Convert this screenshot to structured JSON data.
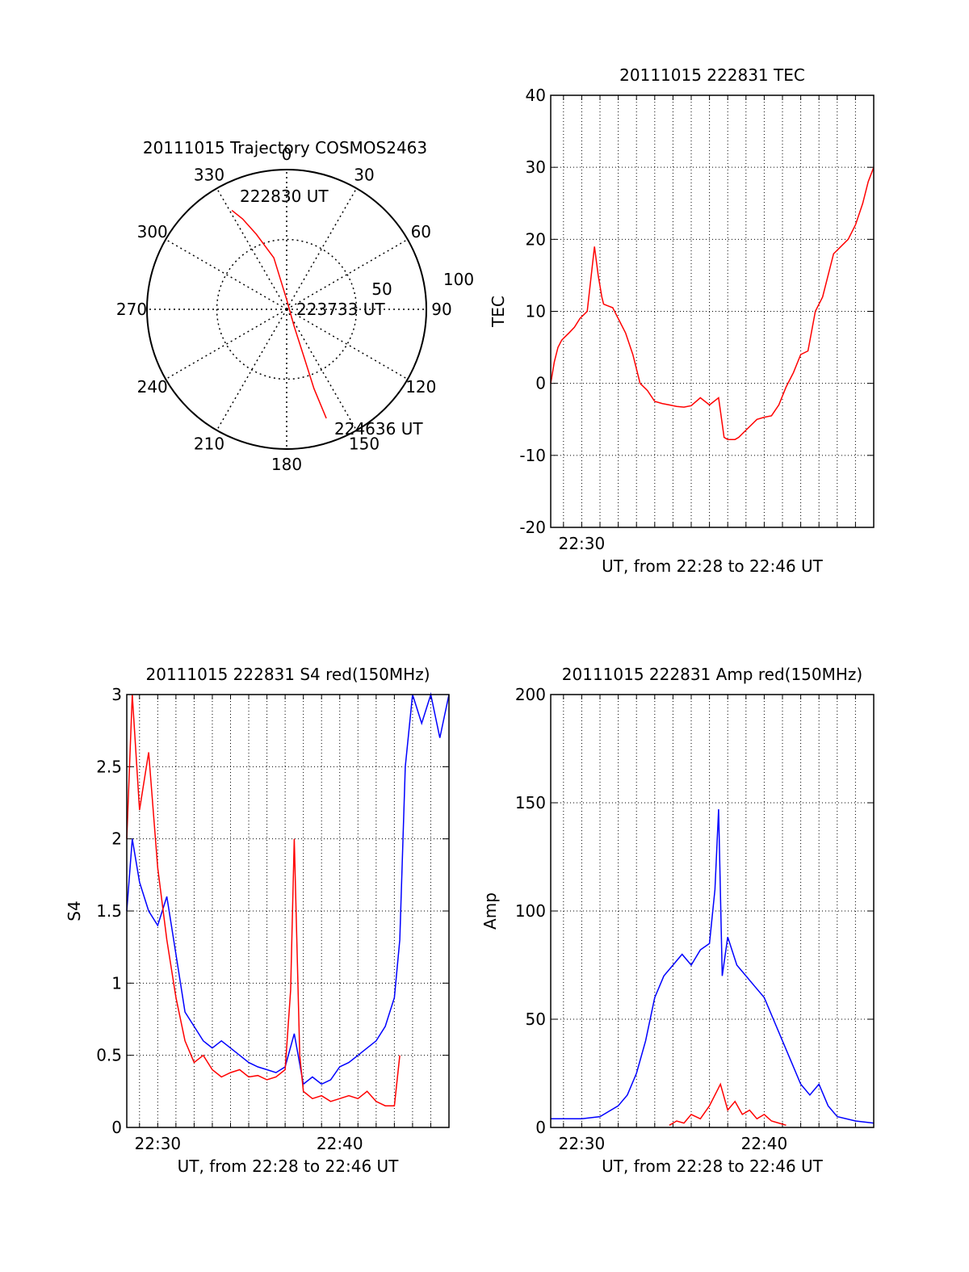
{
  "chart_data": [
    {
      "type": "polar",
      "title": "20111015 Trajectory COSMOS2463",
      "angle_labels": [
        "0",
        "30",
        "60",
        "90",
        "120",
        "150",
        "180",
        "210",
        "240",
        "270",
        "300",
        "330"
      ],
      "radial_labels": [
        "50",
        "100"
      ],
      "start_label": "222830 UT",
      "mid_label": "223733 UT",
      "end_label": "224636 UT",
      "trajectory": [
        [
          -29,
          81
        ],
        [
          -26,
          72
        ],
        [
          -22,
          58
        ],
        [
          -14,
          38
        ],
        [
          0,
          7
        ],
        [
          156,
          13
        ],
        [
          160,
          36
        ],
        [
          161,
          60
        ],
        [
          160,
          83
        ]
      ],
      "colors": {
        "trajectory": "#ff0000"
      }
    },
    {
      "type": "line",
      "title": "20111015 222831 TEC",
      "ylabel": "TEC",
      "xlabel": "UT, from 22:28 to 22:46 UT",
      "xlim": [
        28.3,
        46
      ],
      "ylim": [
        -20,
        40
      ],
      "yticks": [
        "-20",
        "-10",
        "0",
        "10",
        "20",
        "30",
        "40"
      ],
      "xticks": [
        {
          "x": 30,
          "label": "22:30"
        }
      ],
      "series": [
        {
          "color": "#ff0000",
          "x": [
            28.3,
            28.5,
            28.7,
            28.9,
            29.1,
            29.3,
            29.6,
            29.9,
            30.3,
            30.7,
            30.9,
            31.1,
            31.2,
            31.4,
            31.7,
            32.0,
            32.4,
            32.8,
            33.2,
            33.6,
            34.0,
            34.4,
            34.8,
            35.2,
            35.6,
            36.0,
            36.5,
            37.0,
            37.5,
            37.8,
            38.0,
            38.2,
            38.4,
            38.6,
            39.0,
            39.6,
            40.0,
            40.4,
            40.8,
            41.2,
            41.6,
            42.0,
            42.4,
            42.8,
            43.2,
            43.5,
            43.8,
            44.2,
            44.6,
            45.0,
            45.4,
            45.7,
            46.0
          ],
          "y": [
            0,
            3,
            5,
            6,
            6.5,
            7,
            7.8,
            9,
            10,
            19,
            15,
            12,
            11,
            10.8,
            10.5,
            9,
            7,
            4,
            0,
            -1,
            -2.5,
            -2.8,
            -3,
            -3.2,
            -3.3,
            -3.1,
            -2,
            -3,
            -2,
            -7.5,
            -7.8,
            -7.8,
            -7.8,
            -7.5,
            -6.5,
            -5,
            -4.7,
            -4.5,
            -3,
            -0.5,
            1.5,
            4,
            4.5,
            10,
            12,
            15,
            18,
            19,
            20,
            22,
            25,
            28,
            30
          ]
        }
      ]
    },
    {
      "type": "line",
      "title": "20111015 222831 S4 red(150MHz)",
      "ylabel": "S4",
      "xlabel": "UT, from 22:28 to 22:46 UT",
      "xlim": [
        28.3,
        46
      ],
      "ylim": [
        0,
        3
      ],
      "yticks": [
        "0",
        "0.5",
        "1",
        "1.5",
        "2",
        "2.5",
        "3"
      ],
      "xticks": [
        {
          "x": 30,
          "label": "22:30"
        },
        {
          "x": 40,
          "label": "22:40"
        }
      ],
      "series": [
        {
          "color": "#0000ff",
          "x": [
            28.3,
            28.6,
            29.0,
            29.5,
            30.0,
            30.5,
            31.0,
            31.5,
            32.0,
            32.5,
            33.0,
            33.5,
            34.0,
            34.5,
            35.0,
            35.5,
            36.0,
            36.5,
            37.0,
            37.5,
            38.0,
            38.5,
            39.0,
            39.5,
            40.0,
            40.5,
            41.0,
            41.5,
            42.0,
            42.5,
            43.0,
            43.3,
            43.6,
            44.0,
            44.5,
            45.0,
            45.5,
            46.0
          ],
          "y": [
            1.5,
            2.0,
            1.7,
            1.5,
            1.4,
            1.6,
            1.2,
            0.8,
            0.7,
            0.6,
            0.55,
            0.6,
            0.55,
            0.5,
            0.45,
            0.42,
            0.4,
            0.38,
            0.42,
            0.65,
            0.3,
            0.35,
            0.3,
            0.33,
            0.42,
            0.45,
            0.5,
            0.55,
            0.6,
            0.7,
            0.9,
            1.3,
            2.5,
            3.0,
            2.8,
            3.0,
            2.7,
            3.0
          ]
        },
        {
          "color": "#ff0000",
          "x": [
            28.3,
            28.6,
            29.0,
            29.5,
            30.0,
            30.5,
            31.0,
            31.5,
            32.0,
            32.5,
            33.0,
            33.5,
            34.0,
            34.5,
            35.0,
            35.5,
            36.0,
            36.5,
            37.0,
            37.3,
            37.5,
            37.8,
            38.0,
            38.5,
            39.0,
            39.5,
            40.0,
            40.5,
            41.0,
            41.5,
            42.0,
            42.5,
            43.0,
            43.3
          ],
          "y": [
            2.0,
            3.0,
            2.2,
            2.6,
            1.8,
            1.3,
            0.9,
            0.6,
            0.45,
            0.5,
            0.4,
            0.35,
            0.38,
            0.4,
            0.35,
            0.36,
            0.33,
            0.35,
            0.4,
            0.95,
            2.0,
            0.5,
            0.25,
            0.2,
            0.22,
            0.18,
            0.2,
            0.22,
            0.2,
            0.25,
            0.18,
            0.15,
            0.15,
            0.5
          ]
        }
      ]
    },
    {
      "type": "line",
      "title": "20111015 222831 Amp red(150MHz)",
      "ylabel": "Amp",
      "xlabel": "UT, from 22:28 to 22:46 UT",
      "xlim": [
        28.3,
        46
      ],
      "ylim": [
        0,
        200
      ],
      "yticks": [
        "0",
        "50",
        "100",
        "150",
        "200"
      ],
      "xticks": [
        {
          "x": 30,
          "label": "22:30"
        },
        {
          "x": 40,
          "label": "22:40"
        }
      ],
      "series": [
        {
          "color": "#0000ff",
          "x": [
            28.3,
            29.0,
            30.0,
            31.0,
            32.0,
            32.5,
            33.0,
            33.5,
            34.0,
            34.5,
            35.0,
            35.5,
            36.0,
            36.5,
            37.0,
            37.3,
            37.5,
            37.7,
            38.0,
            38.5,
            39.0,
            39.5,
            40.0,
            40.5,
            41.0,
            41.5,
            42.0,
            42.5,
            43.0,
            43.5,
            44.0,
            45.0,
            46.0
          ],
          "y": [
            4,
            4,
            4,
            5,
            10,
            15,
            25,
            40,
            60,
            70,
            75,
            80,
            75,
            82,
            85,
            110,
            147,
            70,
            88,
            75,
            70,
            65,
            60,
            50,
            40,
            30,
            20,
            15,
            20,
            10,
            5,
            3,
            2
          ]
        },
        {
          "color": "#ff0000",
          "x": [
            34.8,
            35.2,
            35.6,
            36.0,
            36.5,
            37.0,
            37.3,
            37.6,
            38.0,
            38.4,
            38.8,
            39.2,
            39.6,
            40.0,
            40.4,
            40.8,
            41.2
          ],
          "y": [
            1,
            3,
            2,
            6,
            4,
            10,
            15,
            20,
            8,
            12,
            6,
            8,
            4,
            6,
            3,
            2,
            1
          ]
        }
      ]
    }
  ]
}
